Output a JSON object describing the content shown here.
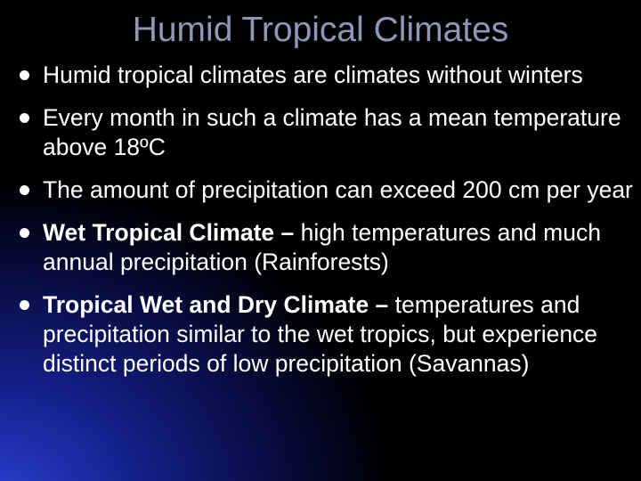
{
  "title": "Humid Tropical Climates",
  "bullets": [
    {
      "text": "Humid tropical climates are climates without winters"
    },
    {
      "text": "Every month in such a climate has a mean temperature above 18ºC"
    },
    {
      "text": "The amount of precipitation can exceed 200 cm per year"
    },
    {
      "bold": "Wet Tropical Climate –",
      "text": "high temperatures and much annual precipitation (Rainforests)"
    },
    {
      "bold": "Tropical Wet and Dry Climate –",
      "text": "temperatures and precipitation similar to the wet tropics, but experience distinct periods of low precipitation (Savannas)"
    }
  ]
}
